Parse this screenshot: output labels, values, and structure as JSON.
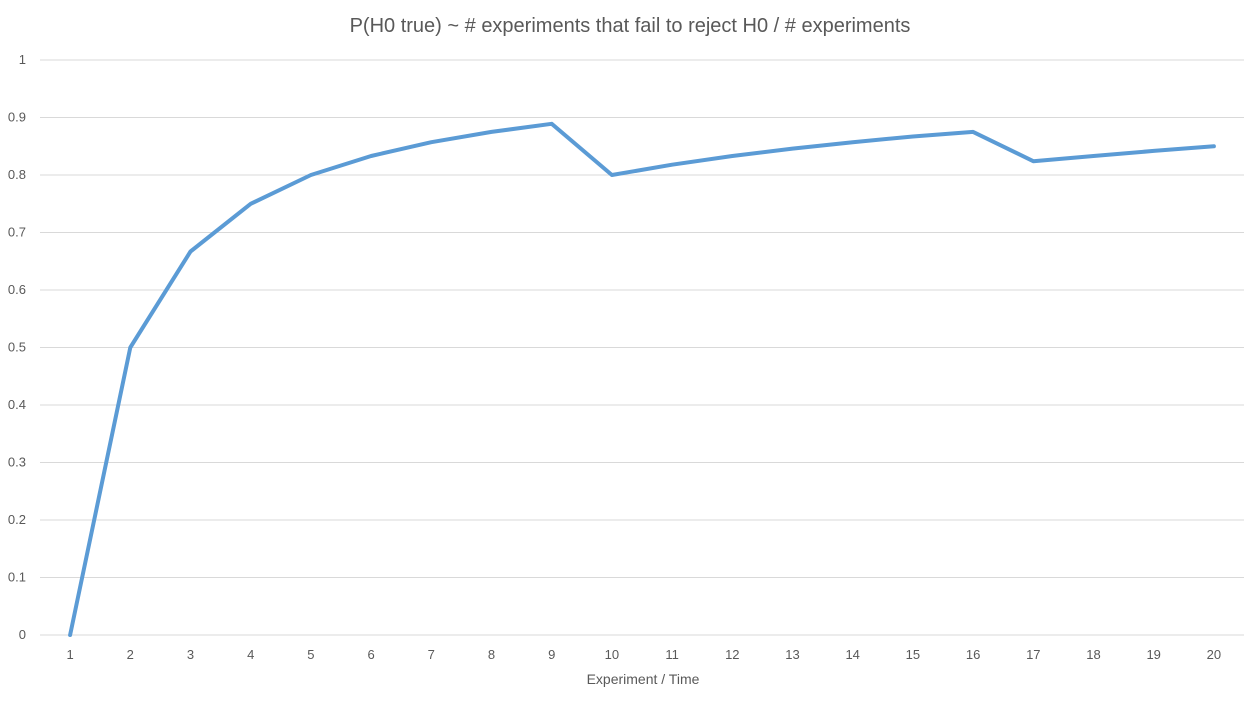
{
  "chart_data": {
    "type": "line",
    "title": "P(H0 true) ~ # experiments that fail to reject H0 / # experiments",
    "xlabel": "Experiment / Time",
    "ylabel": "",
    "categories": [
      "1",
      "2",
      "3",
      "4",
      "5",
      "6",
      "7",
      "8",
      "9",
      "10",
      "11",
      "12",
      "13",
      "14",
      "15",
      "16",
      "17",
      "18",
      "19",
      "20"
    ],
    "ylim": [
      0,
      1
    ],
    "yticks": [
      "0",
      "0.1",
      "0.2",
      "0.3",
      "0.4",
      "0.5",
      "0.6",
      "0.7",
      "0.8",
      "0.9",
      "1"
    ],
    "series": [
      {
        "color": "#5b9bd5",
        "values": [
          0,
          0.5,
          0.667,
          0.75,
          0.8,
          0.833,
          0.857,
          0.875,
          0.889,
          0.8,
          0.818,
          0.833,
          0.846,
          0.857,
          0.867,
          0.875,
          0.824,
          0.833,
          0.842,
          0.85
        ]
      }
    ],
    "grid": true,
    "legend": "none"
  }
}
